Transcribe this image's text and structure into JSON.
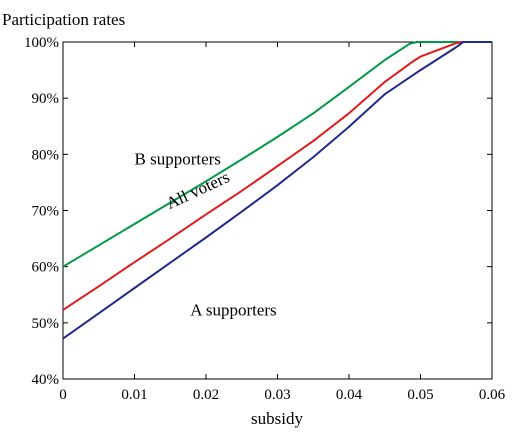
{
  "chart_data": {
    "type": "line",
    "title": "Participation rates",
    "xlabel": "subsidy",
    "ylabel": "",
    "xlim": [
      0,
      0.06
    ],
    "ylim": [
      40,
      100
    ],
    "x_ticks": [
      "0",
      "0.01",
      "0.02",
      "0.03",
      "0.04",
      "0.05",
      "0.06"
    ],
    "y_ticks": [
      "40%",
      "50%",
      "60%",
      "70%",
      "80%",
      "90%",
      "100%"
    ],
    "grid": false,
    "series": [
      {
        "name": "B supporters",
        "color": "#009944",
        "x": [
          0,
          0.005,
          0.01,
          0.015,
          0.02,
          0.025,
          0.03,
          0.035,
          0.04,
          0.045,
          0.0485,
          0.0495,
          0.055,
          0.06
        ],
        "y": [
          60,
          63.8,
          67.6,
          71.4,
          75.2,
          79.1,
          83.1,
          87.3,
          92.0,
          96.8,
          99.7,
          100,
          100,
          100
        ]
      },
      {
        "name": "All voters",
        "color": "#e31a1c",
        "x": [
          0,
          0.005,
          0.01,
          0.015,
          0.02,
          0.025,
          0.03,
          0.035,
          0.04,
          0.045,
          0.049,
          0.05,
          0.055,
          0.056,
          0.06
        ],
        "y": [
          52.3,
          56.5,
          60.8,
          65.0,
          69.3,
          73.5,
          77.9,
          82.4,
          87.3,
          92.9,
          96.6,
          97.4,
          99.8,
          100,
          100
        ]
      },
      {
        "name": "A supporters",
        "color": "#1f2a8c",
        "x": [
          0,
          0.005,
          0.01,
          0.015,
          0.02,
          0.025,
          0.03,
          0.035,
          0.04,
          0.045,
          0.05,
          0.055,
          0.056,
          0.06
        ],
        "y": [
          47.2,
          51.7,
          56.2,
          60.7,
          65.2,
          69.8,
          74.5,
          79.5,
          84.9,
          90.7,
          95.0,
          99.1,
          100,
          100
        ]
      }
    ],
    "annotations": [
      {
        "text": "B supporters",
        "x": 0.01,
        "y": 78.2,
        "rotation": 0
      },
      {
        "text": "All voters",
        "x": 0.0149,
        "y": 70.2,
        "rotation": -25
      },
      {
        "text": "A supporters",
        "x": 0.0178,
        "y": 51.3,
        "rotation": 0
      }
    ]
  }
}
